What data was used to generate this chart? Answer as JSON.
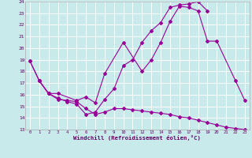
{
  "bg_color": "#c8eaea",
  "grid_color": "#ffffff",
  "line_color": "#990099",
  "xlim": [
    -0.5,
    23.5
  ],
  "ylim": [
    13,
    24
  ],
  "xticks": [
    0,
    1,
    2,
    3,
    4,
    5,
    6,
    7,
    8,
    9,
    10,
    11,
    12,
    13,
    14,
    15,
    16,
    17,
    18,
    19,
    20,
    21,
    22,
    23
  ],
  "yticks": [
    13,
    14,
    15,
    16,
    17,
    18,
    19,
    20,
    21,
    22,
    23,
    24
  ],
  "xlabel": "Windchill (Refroidissement éolien,°C)",
  "line1_x": [
    0,
    1,
    2,
    3,
    5,
    6,
    7,
    8,
    10,
    12,
    13,
    14,
    15,
    16,
    17,
    18,
    19,
    20,
    22,
    23
  ],
  "line1_y": [
    18.9,
    17.2,
    16.1,
    16.1,
    15.5,
    15.8,
    15.3,
    17.8,
    20.5,
    18.0,
    19.0,
    20.5,
    22.3,
    23.6,
    23.5,
    23.2,
    20.6,
    20.6,
    17.2,
    15.5
  ],
  "line2_x": [
    0,
    1,
    2,
    3,
    4,
    5,
    6,
    7,
    8,
    9,
    10,
    11,
    12,
    13,
    14,
    15,
    16,
    17,
    18,
    19,
    20,
    21,
    22,
    23
  ],
  "line2_y": [
    18.9,
    17.2,
    16.1,
    15.7,
    15.4,
    15.2,
    14.3,
    14.5,
    15.6,
    16.5,
    18.5,
    19.0,
    20.5,
    21.5,
    22.2,
    23.5,
    23.7,
    23.8,
    24.0,
    23.2,
    null,
    null,
    null,
    null
  ],
  "line3_x": [
    1,
    2,
    3,
    4,
    5,
    6,
    7,
    8,
    9,
    10,
    11,
    12,
    13,
    14,
    15,
    16,
    17,
    18,
    19,
    20,
    21,
    22,
    23
  ],
  "line3_y": [
    17.2,
    16.1,
    15.6,
    15.5,
    15.4,
    14.8,
    14.3,
    14.5,
    14.8,
    14.8,
    14.7,
    14.6,
    14.5,
    14.4,
    14.3,
    14.1,
    14.0,
    13.8,
    13.6,
    13.4,
    13.2,
    13.1,
    13.0
  ]
}
